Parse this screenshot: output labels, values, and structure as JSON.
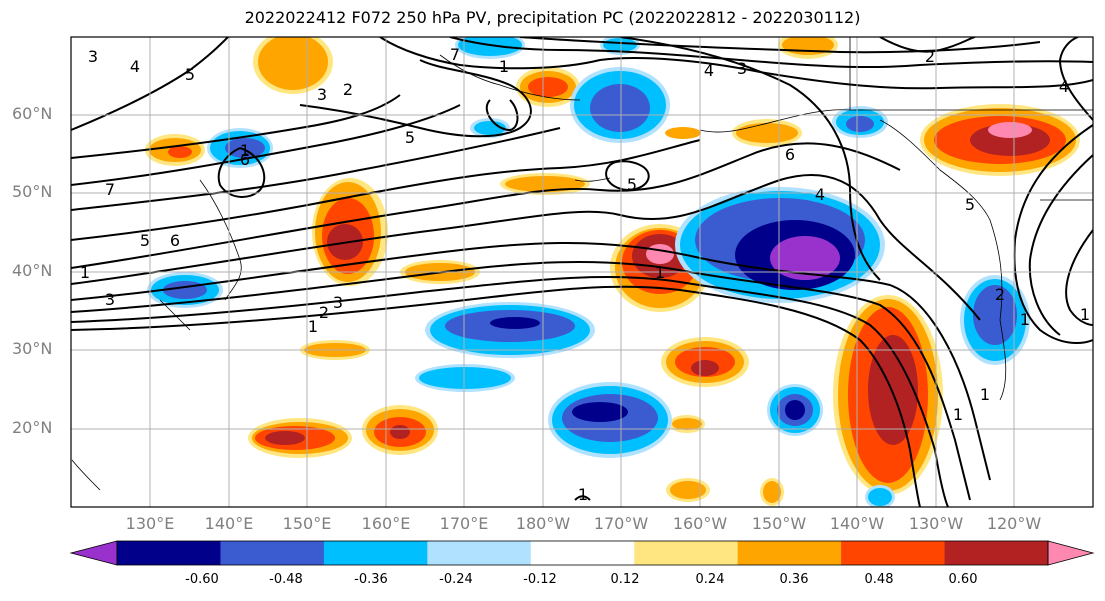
{
  "title": "2022022412 F072 250 hPa PV, precipitation PC (2022022812 - 2022030112)",
  "map": {
    "lat_labels": [
      "60°N",
      "50°N",
      "40°N",
      "30°N",
      "20°N"
    ],
    "lon_labels": [
      "130°E",
      "140°E",
      "150°E",
      "160°E",
      "170°E",
      "180°W",
      "170°W",
      "160°W",
      "150°W",
      "140°W",
      "130°W",
      "120°W"
    ],
    "pv_contour_labels": [
      "3",
      "4",
      "5",
      "3",
      "2",
      "1",
      "5",
      "7",
      "4",
      "3",
      "2",
      "6",
      "5",
      "5",
      "1",
      "1",
      "7",
      "5",
      "6",
      "3",
      "3",
      "2",
      "1",
      "1",
      "6",
      "2",
      "1",
      "1",
      "1",
      "4",
      "1",
      "4",
      "1"
    ]
  },
  "colorbar": {
    "ticks": [
      "-0.60",
      "-0.48",
      "-0.36",
      "-0.24",
      "-0.12",
      "0.12",
      "0.24",
      "0.36",
      "0.48",
      "0.60"
    ],
    "colors": [
      "#9932cc",
      "#00008b",
      "#3b5bd0",
      "#00bfff",
      "#b0e2ff",
      "#ffffff",
      "#ffe680",
      "#ffa500",
      "#ff4500",
      "#b22222",
      "#ff88b0"
    ]
  }
}
